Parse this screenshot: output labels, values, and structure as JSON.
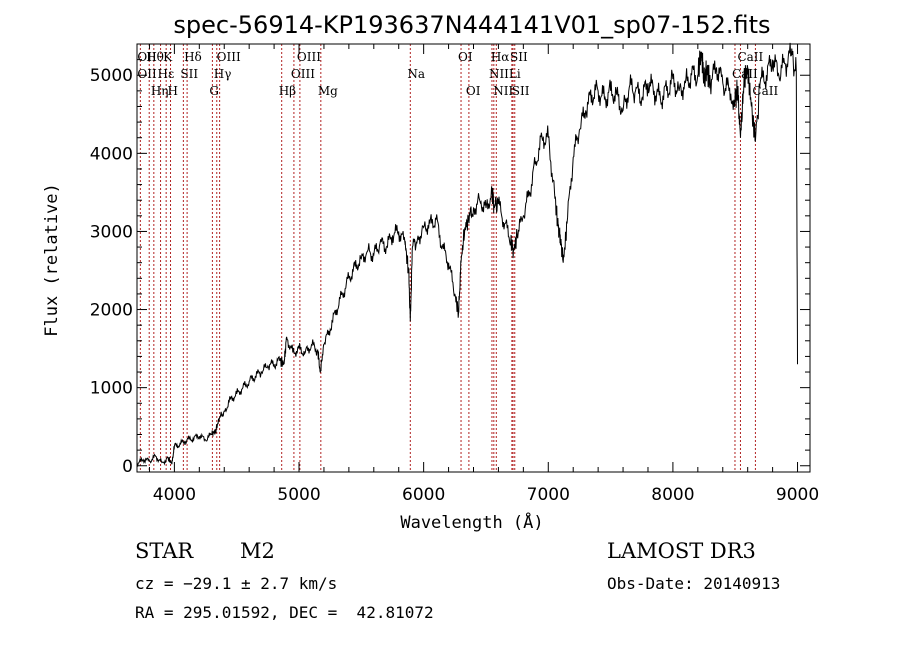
{
  "chart_data": {
    "type": "line",
    "title": "spec-56914-KP193637N444141V01_sp07-152.fits",
    "xlabel": "Wavelength (Å)",
    "ylabel": "Flux (relative)",
    "xlim": [
      3700,
      9100
    ],
    "ylim": [
      -80,
      5400
    ],
    "xticks": [
      4000,
      5000,
      6000,
      7000,
      8000,
      9000
    ],
    "yticks": [
      0,
      1000,
      2000,
      3000,
      4000,
      5000
    ],
    "series": [
      {
        "name": "flux",
        "x": [
          3700,
          3750,
          3800,
          3850,
          3900,
          3950,
          3980,
          4000,
          4050,
          4100,
          4150,
          4200,
          4250,
          4300,
          4330,
          4360,
          4400,
          4450,
          4500,
          4550,
          4600,
          4650,
          4700,
          4750,
          4800,
          4850,
          4880,
          4900,
          4950,
          5000,
          5050,
          5100,
          5150,
          5170,
          5200,
          5250,
          5300,
          5350,
          5400,
          5450,
          5500,
          5550,
          5600,
          5650,
          5700,
          5750,
          5800,
          5850,
          5880,
          5893,
          5910,
          5950,
          6000,
          6050,
          6100,
          6150,
          6200,
          6250,
          6280,
          6300,
          6330,
          6360,
          6400,
          6450,
          6500,
          6550,
          6563,
          6600,
          6650,
          6700,
          6720,
          6750,
          6800,
          6850,
          6900,
          6950,
          7000,
          7050,
          7080,
          7100,
          7120,
          7150,
          7200,
          7250,
          7300,
          7350,
          7400,
          7450,
          7500,
          7550,
          7600,
          7650,
          7700,
          7750,
          7800,
          7850,
          7900,
          7950,
          8000,
          8050,
          8100,
          8150,
          8200,
          8230,
          8250,
          8270,
          8300,
          8350,
          8400,
          8450,
          8498,
          8520,
          8542,
          8570,
          8600,
          8630,
          8662,
          8700,
          8750,
          8800,
          8850,
          8900,
          8950,
          8990,
          9000
        ],
        "y": [
          20,
          80,
          60,
          120,
          40,
          100,
          20,
          250,
          280,
          330,
          350,
          380,
          330,
          400,
          450,
          600,
          700,
          850,
          920,
          1000,
          1080,
          1150,
          1200,
          1280,
          1300,
          1350,
          1300,
          1650,
          1450,
          1500,
          1450,
          1550,
          1480,
          1200,
          1550,
          1750,
          2000,
          2200,
          2400,
          2550,
          2650,
          2750,
          2700,
          2850,
          2800,
          2950,
          3000,
          2850,
          2500,
          1850,
          2800,
          2900,
          3050,
          3100,
          3150,
          2800,
          2600,
          2200,
          1950,
          2600,
          3050,
          3150,
          3300,
          3400,
          3300,
          3500,
          3350,
          3350,
          3100,
          2900,
          2750,
          2950,
          3200,
          3500,
          3900,
          4200,
          4200,
          3500,
          3050,
          2900,
          2600,
          3100,
          3950,
          4300,
          4550,
          4750,
          4800,
          4700,
          4800,
          4750,
          4550,
          4850,
          4800,
          4700,
          4900,
          4800,
          4700,
          4800,
          4950,
          4800,
          4900,
          5000,
          5000,
          5300,
          4900,
          5100,
          4900,
          5100,
          4900,
          4800,
          4700,
          4800,
          4200,
          4900,
          5100,
          4600,
          4150,
          4900,
          5000,
          5200,
          5000,
          5150,
          5250,
          5050,
          1300
        ]
      }
    ],
    "lines": [
      {
        "label": "Hθ",
        "row": 1,
        "wl": 3798
      },
      {
        "label": "OII",
        "row": 2,
        "wl": 3727
      },
      {
        "label": "Hη",
        "row": 3,
        "wl": 3835
      },
      {
        "label": "OII",
        "row": 1,
        "wl": 3727
      },
      {
        "label": "Hε",
        "row": 2,
        "wl": 3889
      },
      {
        "label": "K",
        "row": 1,
        "wl": 3934
      },
      {
        "label": "H",
        "row": 3,
        "wl": 3969
      },
      {
        "label": "Hδ",
        "row": 1,
        "wl": 4102
      },
      {
        "label": "SII",
        "row": 2,
        "wl": 4072
      },
      {
        "label": "OIII",
        "row": 1,
        "wl": 4363
      },
      {
        "label": "Hγ",
        "row": 2,
        "wl": 4340
      },
      {
        "label": "G",
        "row": 3,
        "wl": 4305
      },
      {
        "label": "Hβ",
        "row": 3,
        "wl": 4861
      },
      {
        "label": "OIII",
        "row": 1,
        "wl": 5007
      },
      {
        "label": "OIII",
        "row": 2,
        "wl": 4959
      },
      {
        "label": "Mg",
        "row": 3,
        "wl": 5175
      },
      {
        "label": "Na",
        "row": 2,
        "wl": 5893
      },
      {
        "label": "OI",
        "row": 1,
        "wl": 6300
      },
      {
        "label": "OI",
        "row": 3,
        "wl": 6363
      },
      {
        "label": "Hα",
        "row": 1,
        "wl": 6563
      },
      {
        "label": "NII",
        "row": 2,
        "wl": 6548
      },
      {
        "label": "NII",
        "row": 3,
        "wl": 6583
      },
      {
        "label": "SII",
        "row": 1,
        "wl": 6717
      },
      {
        "label": "Li",
        "row": 2,
        "wl": 6708
      },
      {
        "label": "SII",
        "row": 3,
        "wl": 6731
      },
      {
        "label": "CaII",
        "row": 1,
        "wl": 8542
      },
      {
        "label": "CaII",
        "row": 2,
        "wl": 8498
      },
      {
        "label": "CaII",
        "row": 3,
        "wl": 8662
      }
    ]
  },
  "info": {
    "object_class": "STAR",
    "subclass": "M2",
    "survey": "LAMOST DR3",
    "cz": "cz = −29.1 ± 2.7 km/s",
    "obs_date": "Obs-Date: 20140913",
    "coords": "RA = 295.01592, DEC =  42.81072"
  },
  "colors": {
    "spectrum": "#000000",
    "marker_lines": "#b22222",
    "axes": "#000000",
    "background": "#ffffff"
  }
}
